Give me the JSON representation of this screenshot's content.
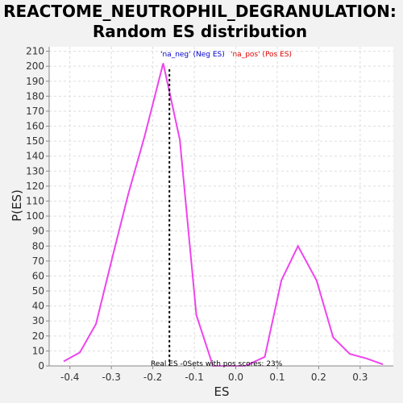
{
  "chart_data": {
    "type": "line",
    "title": [
      "REACTOME_NEUTROPHIL_DEGRANULATION:",
      "Random ES distribution"
    ],
    "xlabel": "ES",
    "ylabel": "P(ES)",
    "xlim": [
      -0.45,
      0.38
    ],
    "ylim": [
      0,
      213
    ],
    "x_ticks": [
      -0.4,
      -0.3,
      -0.2,
      -0.1,
      0.0,
      0.1,
      0.2,
      0.3
    ],
    "x_tick_labels": [
      "-0.4",
      "-0.3",
      "-0.2",
      "-0.1",
      "0.0",
      "0.1",
      "0.2",
      "0.3"
    ],
    "y_ticks": [
      0,
      10,
      20,
      30,
      40,
      50,
      60,
      70,
      80,
      90,
      100,
      110,
      120,
      130,
      140,
      150,
      160,
      170,
      180,
      190,
      200,
      210
    ],
    "grid": true,
    "series": [
      {
        "color": "#ee44ee",
        "x": [
          -0.415,
          -0.376,
          -0.337,
          -0.298,
          -0.259,
          -0.22,
          -0.175,
          -0.135,
          -0.095,
          -0.055,
          -0.016,
          0.023,
          0.07,
          0.11,
          0.15,
          0.195,
          0.235,
          0.275,
          0.315,
          0.355
        ],
        "y": [
          3,
          9,
          28,
          72,
          115,
          153,
          202,
          151,
          34,
          0,
          0,
          0,
          6,
          57,
          80,
          57,
          19,
          8,
          5,
          1
        ]
      }
    ],
    "real_es_line": {
      "x": -0.16,
      "color": "#000000"
    },
    "legend": {
      "placement": "top",
      "neg_label": "'na_neg' (Neg ES)",
      "pos_label": "'na_pos' (Pos ES)",
      "neg_color": "#0000cc",
      "pos_color": "#dd0000"
    },
    "footer_text": "Real ES -0Sets with pos scores: 23%"
  }
}
